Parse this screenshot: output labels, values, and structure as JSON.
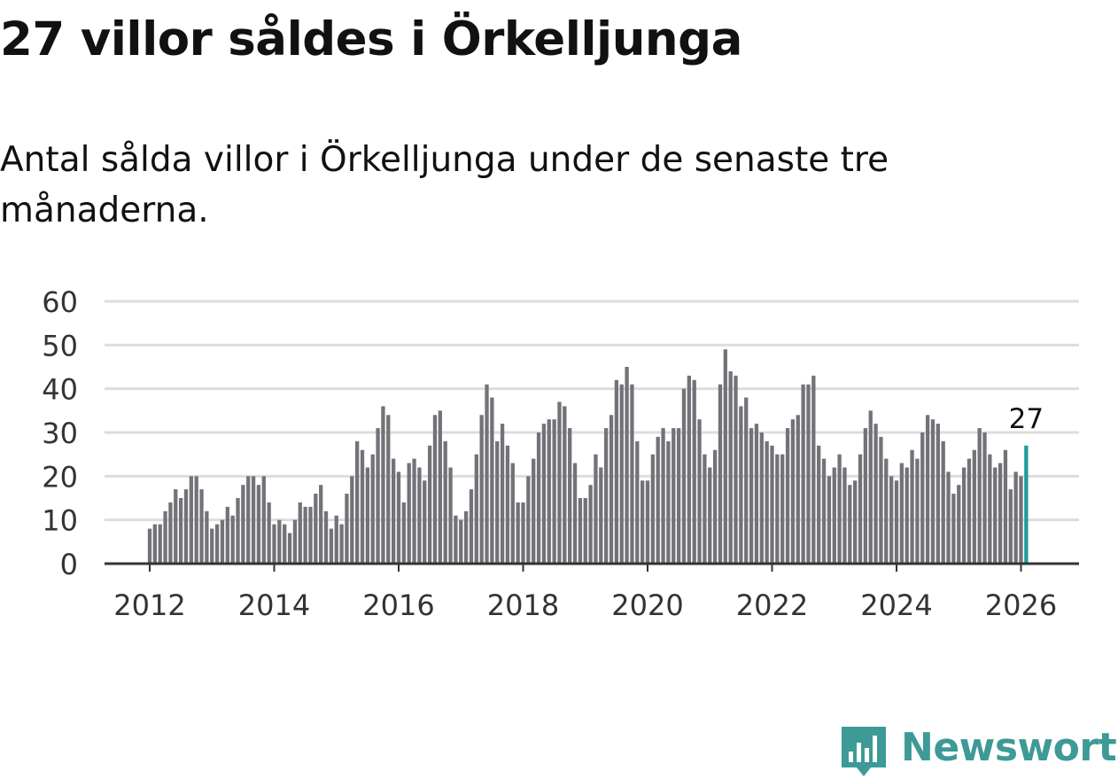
{
  "headline": "27 villor såldes i Örkelljunga",
  "subtitle": "Antal sålda villor i Örkelljunga under de senaste tre månaderna.",
  "brand": {
    "name": "Newsworthy",
    "color": "#3d9a96",
    "icon": "newsworthy-logo-icon"
  },
  "colors": {
    "bar": "#737278",
    "highlight": "#1a9c98",
    "grid": "#dddddd",
    "axis": "#333333",
    "tick_text": "#333333"
  },
  "chart_data": {
    "type": "bar",
    "title": "27 villor såldes i Örkelljunga",
    "xlabel": "",
    "ylabel": "",
    "ylim": [
      0,
      60
    ],
    "yticks": [
      0,
      10,
      20,
      30,
      40,
      50,
      60
    ],
    "xticks": [
      "2012",
      "2014",
      "2016",
      "2018",
      "2020",
      "2022",
      "2024",
      "2026"
    ],
    "first_period": "2012-01",
    "last_period": "2026-02",
    "grid": true,
    "highlight_label": "27",
    "values": [
      8,
      9,
      9,
      12,
      14,
      17,
      15,
      17,
      20,
      20,
      17,
      12,
      8,
      9,
      10,
      13,
      11,
      15,
      18,
      20,
      20,
      18,
      20,
      14,
      9,
      10,
      9,
      7,
      10,
      14,
      13,
      13,
      16,
      18,
      12,
      8,
      11,
      9,
      16,
      20,
      28,
      26,
      22,
      25,
      31,
      36,
      34,
      24,
      21,
      14,
      23,
      24,
      22,
      19,
      27,
      34,
      35,
      28,
      22,
      11,
      10,
      12,
      17,
      25,
      34,
      41,
      38,
      28,
      32,
      27,
      23,
      14,
      14,
      20,
      24,
      30,
      32,
      33,
      33,
      37,
      36,
      31,
      23,
      15,
      15,
      18,
      25,
      22,
      31,
      34,
      42,
      41,
      45,
      41,
      28,
      19,
      19,
      25,
      29,
      31,
      28,
      31,
      31,
      40,
      43,
      42,
      33,
      25,
      22,
      26,
      41,
      49,
      44,
      43,
      36,
      38,
      31,
      32,
      30,
      28,
      27,
      25,
      25,
      31,
      33,
      34,
      41,
      41,
      43,
      27,
      24,
      20,
      22,
      25,
      22,
      18,
      19,
      25,
      31,
      35,
      32,
      29,
      24,
      20,
      19,
      23,
      22,
      26,
      24,
      30,
      34,
      33,
      32,
      28,
      21,
      16,
      18,
      22,
      24,
      26,
      31,
      30,
      25,
      22,
      23,
      26,
      17,
      21,
      20,
      27
    ]
  }
}
